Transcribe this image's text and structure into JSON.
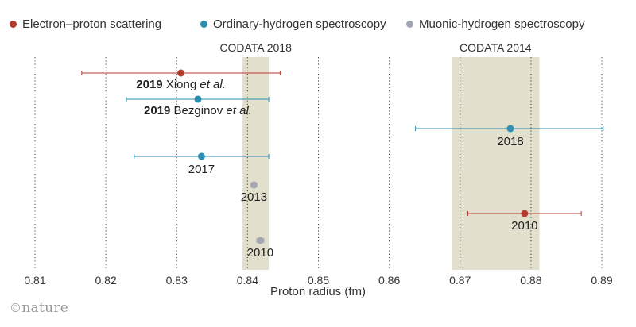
{
  "chart_data": {
    "type": "scatter",
    "title": "",
    "xlabel": "Proton radius (fm)",
    "ylabel": "",
    "xlim": [
      0.81,
      0.89
    ],
    "x_ticks": [
      "0.81",
      "0.82",
      "0.83",
      "0.84",
      "0.85",
      "0.86",
      "0.87",
      "0.88",
      "0.89"
    ],
    "legend_position": "top",
    "series": [
      {
        "name": "Electron–proton scattering",
        "color": "#b53a2f"
      },
      {
        "name": "Ordinary-hydrogen spectroscopy",
        "color": "#2b8fb3"
      },
      {
        "name": "Muonic-hydrogen spectroscopy",
        "color": "#a3a7b3"
      }
    ],
    "bands": [
      {
        "label": "CODATA 2018",
        "x_min": 0.8393,
        "x_max": 0.843
      },
      {
        "label": "CODATA 2014",
        "x_min": 0.8688,
        "x_max": 0.8812
      }
    ],
    "points": [
      {
        "series": 0,
        "x": 0.8306,
        "err_low": 0.8166,
        "err_high": 0.8446,
        "label_bold": "2019",
        "label_text": " Xiong ",
        "label_italic": "et al."
      },
      {
        "series": 1,
        "x": 0.833,
        "err_low": 0.8229,
        "err_high": 0.843,
        "label_bold": "2019",
        "label_text": " Bezginov ",
        "label_italic": "et al."
      },
      {
        "series": 1,
        "x": 0.8771,
        "err_low": 0.8637,
        "err_high": 0.8902,
        "label_bold": "",
        "label_text": "2018",
        "label_italic": ""
      },
      {
        "series": 1,
        "x": 0.8335,
        "err_low": 0.824,
        "err_high": 0.843,
        "label_bold": "",
        "label_text": "2017",
        "label_italic": ""
      },
      {
        "series": 2,
        "x": 0.8409,
        "err_low": 0.8405,
        "err_high": 0.8413,
        "label_bold": "",
        "label_text": "2013",
        "label_italic": ""
      },
      {
        "series": 0,
        "x": 0.8791,
        "err_low": 0.8711,
        "err_high": 0.8871,
        "label_bold": "",
        "label_text": "2010",
        "label_italic": ""
      },
      {
        "series": 2,
        "x": 0.8418,
        "err_low": 0.8413,
        "err_high": 0.8423,
        "label_bold": "",
        "label_text": "2010",
        "label_italic": ""
      }
    ],
    "grid": true
  },
  "credit": {
    "symbol": "©",
    "name": "nature"
  }
}
